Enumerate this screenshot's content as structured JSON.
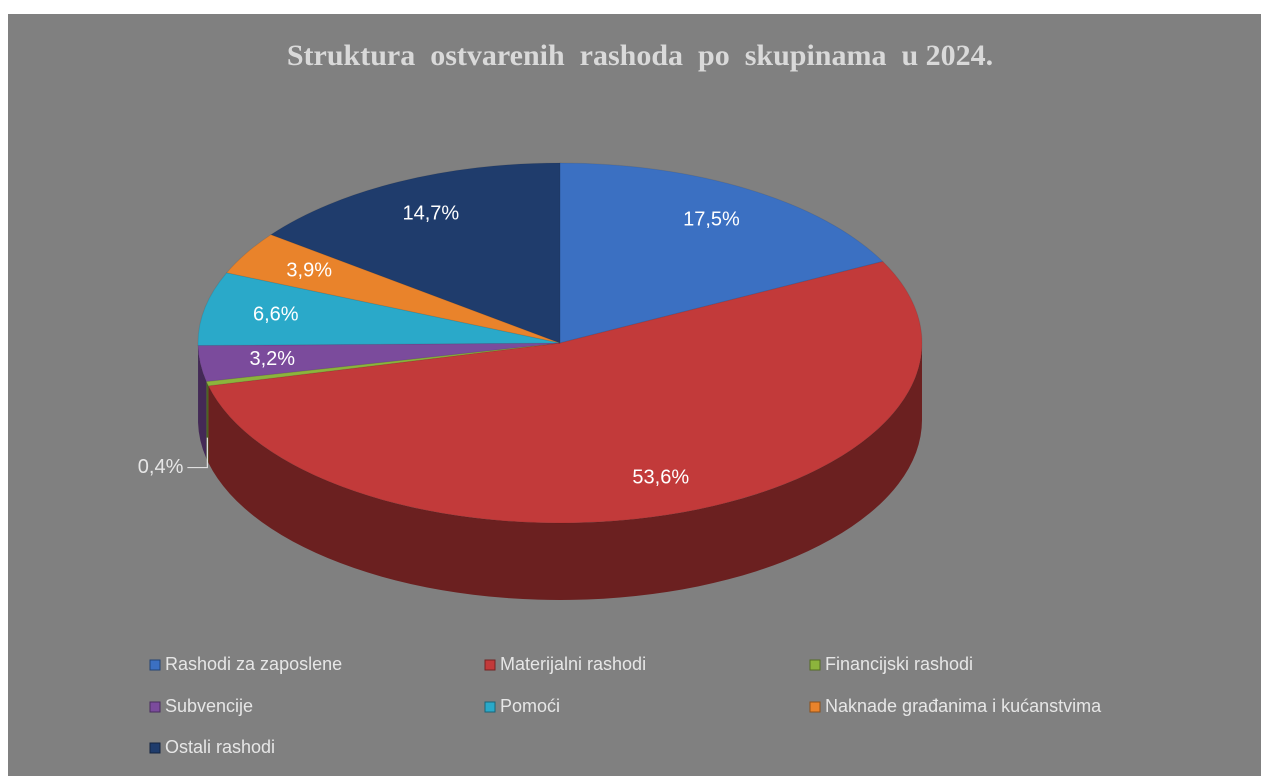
{
  "chart_data": {
    "type": "pie",
    "title": "Struktura  ostvarenih  rashoda  po  skupinama  u 2024.",
    "categories": [
      "Rashodi za zaposlene",
      "Materijalni rashodi",
      "Financijski rashodi",
      "Subvencije",
      "Pomoći",
      "Naknade građanima i kućanstvima",
      "Ostali rashodi"
    ],
    "values": [
      17.5,
      53.6,
      0.4,
      3.2,
      6.6,
      3.9,
      14.7
    ],
    "value_labels": [
      "17,5%",
      "53,6%",
      "0,4%",
      "3,2%",
      "6,6%",
      "3,9%",
      "14,7%"
    ],
    "colors": [
      "#3b70c2",
      "#c23a3a",
      "#8cb43c",
      "#7b4b9c",
      "#2aa9c9",
      "#e9832b",
      "#1f3c6c"
    ],
    "legend": "bottom"
  }
}
